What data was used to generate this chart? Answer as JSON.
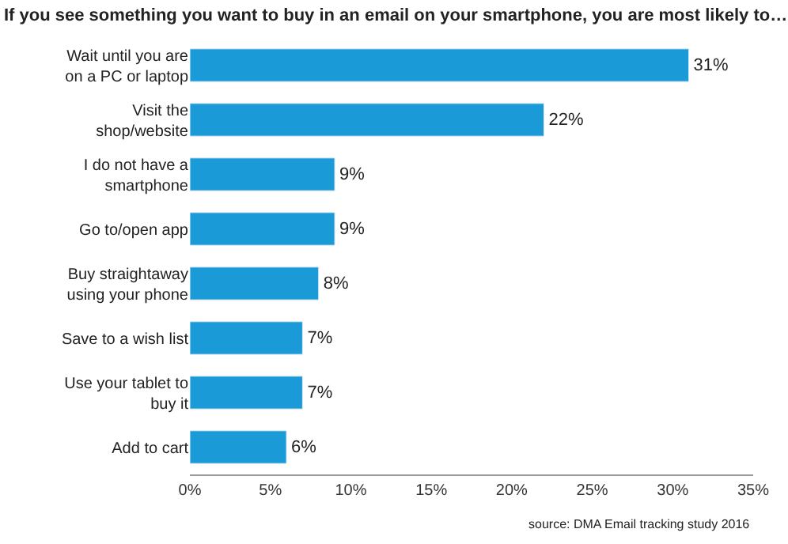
{
  "chart_data": {
    "type": "bar",
    "orientation": "horizontal",
    "title": "If you see something you want to buy in an email on your smartphone, you are most likely to…",
    "categories": [
      "Wait until you are on a PC or laptop",
      "Visit the shop/website",
      "I do not have a smartphone",
      "Go to/open app",
      "Buy straightaway using your phone",
      "Save to a wish list",
      "Use your tablet to buy it",
      "Add to cart"
    ],
    "values": [
      31,
      22,
      9,
      9,
      8,
      7,
      7,
      6
    ],
    "value_labels": [
      "31%",
      "22%",
      "9%",
      "9%",
      "8%",
      "7%",
      "7%",
      "6%"
    ],
    "color": "#1a9ad7",
    "xlim": [
      0,
      35
    ],
    "xticks": [
      {
        "value": 0,
        "label": "0%"
      },
      {
        "value": 5,
        "label": "5%"
      },
      {
        "value": 10,
        "label": "10%"
      },
      {
        "value": 15,
        "label": "15%"
      },
      {
        "value": 20,
        "label": "20%"
      },
      {
        "value": 25,
        "label": "25%"
      },
      {
        "value": 30,
        "label": "30%"
      },
      {
        "value": 35,
        "label": "35%"
      }
    ],
    "legend": false,
    "annotations": [
      "source: DMA Email tracking study 2016"
    ]
  }
}
